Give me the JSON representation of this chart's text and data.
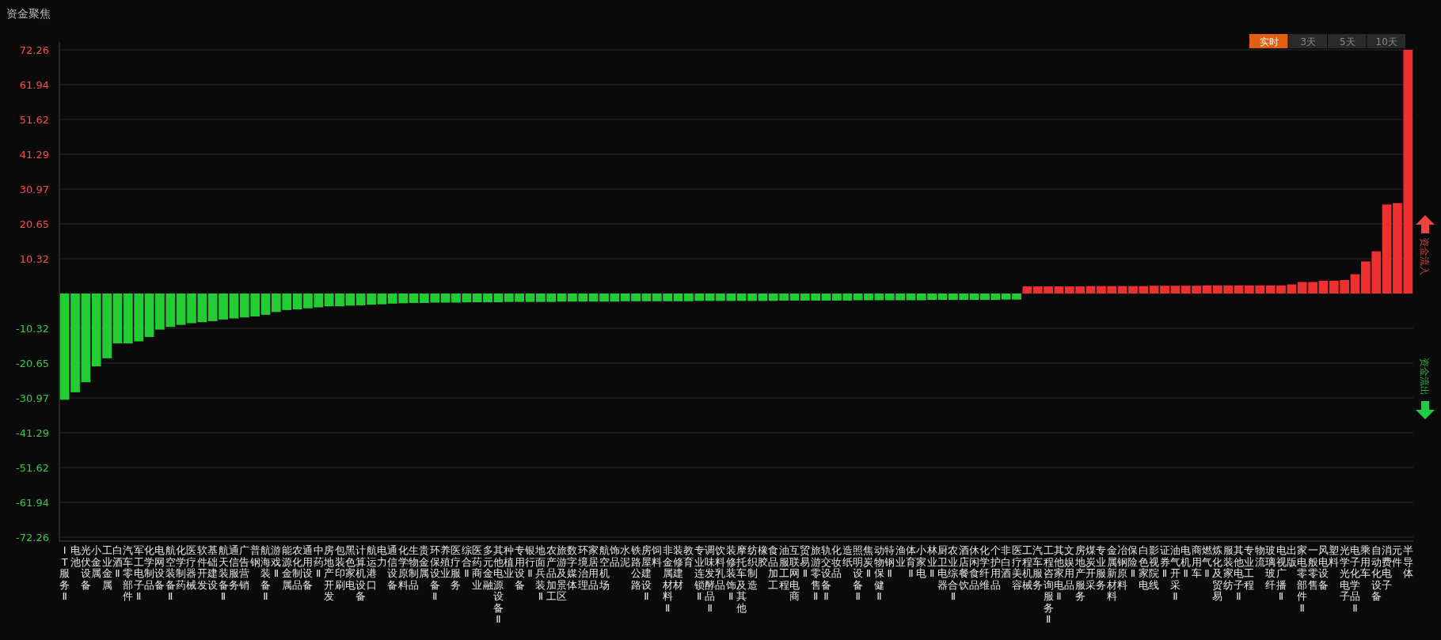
{
  "chart_data": {
    "type": "bar",
    "title": "资金聚焦",
    "categories": [
      "IT服务Ⅱ",
      "电池",
      "光伏设备",
      "小金属",
      "工业金属",
      "白酒Ⅱ",
      "汽车零部件",
      "军工电子Ⅱ",
      "化学制品",
      "电网设备",
      "航空装备Ⅱ",
      "化学制药",
      "医疗器械",
      "软件开发",
      "基础建设",
      "航天装备Ⅱ",
      "通信服务",
      "广告营销",
      "普钢",
      "航海装备Ⅱ",
      "游戏Ⅱ",
      "能源金属",
      "农化制品",
      "通用设备",
      "中药Ⅱ",
      "房地产开发",
      "包装印刷",
      "黑色家电",
      "计算机设备",
      "航运港口",
      "电力",
      "通信设备",
      "化学原料",
      "生物制品",
      "贵金属",
      "环保设备Ⅱ",
      "养殖业",
      "医疗服务",
      "综合Ⅱ",
      "医药商业",
      "多元金融",
      "其他电源设备Ⅱ",
      "种植业",
      "专用设备",
      "银行Ⅱ",
      "地面兵装Ⅱ",
      "农产品加工",
      "旅游及景区",
      "数字媒体",
      "环境治理",
      "家居用品",
      "航空机场",
      "饰品",
      "水泥",
      "铁路公路",
      "房屋建设Ⅱ",
      "饲料",
      "非金属材料Ⅱ",
      "装修建材",
      "教育",
      "专业连锁Ⅱ",
      "调味发酵品Ⅱ",
      "饮料乳品",
      "装修装饰Ⅱ",
      "摩托车及其他",
      "纺织制造",
      "橡胶",
      "食品加工",
      "油服工程",
      "互联网电商",
      "贸易Ⅱ",
      "旅游零售Ⅱ",
      "轨交设备Ⅱ",
      "化妆品",
      "造纸",
      "照明设备Ⅱ",
      "焦炭Ⅱ",
      "动物保健Ⅱ",
      "特钢Ⅱ",
      "渔业",
      "体育Ⅱ",
      "小家电",
      "林业Ⅱ",
      "厨卫电器",
      "农业综合Ⅱ",
      "酒店餐饮",
      "休闲食品",
      "化学纤维",
      "个护用品",
      "非白酒",
      "医疗美容",
      "工程机械",
      "汽车服务",
      "工程咨询服务Ⅱ",
      "其他家电Ⅱ",
      "文娱用品",
      "房地产服务",
      "煤炭开采",
      "专业服务",
      "金属新材料",
      "冶钢原料",
      "保险Ⅱ",
      "白色家电",
      "影视院线",
      "证券Ⅱ",
      "油气开采Ⅱ",
      "电机Ⅱ",
      "商用车",
      "燃气Ⅱ",
      "炼化及贸易",
      "服装家纺",
      "其他电子Ⅱ",
      "专业工程",
      "物流",
      "玻璃玻纤",
      "电视广播Ⅱ",
      "出版",
      "家电零部件Ⅱ",
      "一般零售",
      "风电设备",
      "塑料",
      "光学光电子",
      "电子化学品Ⅱ",
      "乘用车",
      "自动化设备",
      "消费电子",
      "元件",
      "半导体"
    ],
    "values": [
      -31.5,
      -29.3,
      -26.3,
      -21.6,
      -19.2,
      -14.8,
      -14.8,
      -14.2,
      -12.9,
      -10.7,
      -9.9,
      -9.3,
      -8.8,
      -8.5,
      -8.2,
      -7.7,
      -7.4,
      -7.1,
      -6.8,
      -6.3,
      -5.5,
      -4.9,
      -4.7,
      -4.4,
      -4.1,
      -3.8,
      -3.8,
      -3.6,
      -3.5,
      -3.3,
      -3.2,
      -3.0,
      -2.9,
      -2.8,
      -2.8,
      -2.7,
      -2.7,
      -2.7,
      -2.6,
      -2.6,
      -2.6,
      -2.6,
      -2.5,
      -2.5,
      -2.5,
      -2.5,
      -2.5,
      -2.4,
      -2.4,
      -2.4,
      -2.4,
      -2.4,
      -2.4,
      -2.3,
      -2.3,
      -2.3,
      -2.3,
      -2.3,
      -2.3,
      -2.3,
      -2.2,
      -2.2,
      -2.2,
      -2.2,
      -2.2,
      -2.2,
      -2.2,
      -2.2,
      -2.1,
      -2.1,
      -2.1,
      -2.1,
      -2.1,
      -2.1,
      -2.1,
      -2.0,
      -2.0,
      -2.0,
      -2.0,
      -2.0,
      -2.0,
      -2.0,
      -1.9,
      -1.9,
      -1.9,
      -1.9,
      -1.9,
      -1.9,
      -1.9,
      -1.8,
      -1.8,
      2.1,
      2.1,
      2.1,
      2.1,
      2.1,
      2.1,
      2.2,
      2.2,
      2.2,
      2.2,
      2.2,
      2.2,
      2.3,
      2.3,
      2.3,
      2.3,
      2.3,
      2.4,
      2.4,
      2.4,
      2.4,
      2.4,
      2.4,
      2.4,
      2.4,
      2.7,
      3.4,
      3.4,
      3.8,
      3.8,
      4.0,
      5.7,
      9.5,
      12.5,
      26.4,
      26.8,
      72.26
    ],
    "colors": [
      "#22cc33",
      "#22cc33",
      "#22cc33",
      "#22cc33",
      "#22cc33",
      "#22cc33",
      "#22cc33",
      "#22cc33",
      "#22cc33",
      "#22cc33",
      "#22cc33",
      "#22cc33",
      "#22cc33",
      "#22cc33",
      "#22cc33",
      "#22cc33",
      "#22cc33",
      "#22cc33",
      "#22cc33",
      "#22cc33",
      "#22cc33",
      "#22cc33",
      "#22cc33",
      "#22cc33",
      "#22cc33",
      "#22cc33",
      "#22cc33",
      "#22cc33",
      "#22cc33",
      "#22cc33",
      "#22cc33",
      "#22cc33",
      "#22cc33",
      "#22cc33",
      "#22cc33",
      "#22cc33",
      "#22cc33",
      "#22cc33",
      "#22cc33",
      "#22cc33",
      "#22cc33",
      "#22cc33",
      "#22cc33",
      "#22cc33",
      "#22cc33",
      "#22cc33",
      "#22cc33",
      "#22cc33",
      "#22cc33",
      "#22cc33",
      "#22cc33",
      "#22cc33",
      "#22cc33",
      "#22cc33",
      "#22cc33",
      "#22cc33",
      "#22cc33",
      "#22cc33",
      "#22cc33",
      "#22cc33",
      "#22cc33",
      "#22cc33",
      "#22cc33",
      "#22cc33",
      "#22cc33",
      "#22cc33",
      "#22cc33",
      "#22cc33",
      "#22cc33",
      "#22cc33",
      "#22cc33",
      "#22cc33",
      "#22cc33",
      "#22cc33",
      "#22cc33",
      "#22cc33",
      "#22cc33",
      "#22cc33",
      "#22cc33",
      "#22cc33",
      "#22cc33",
      "#22cc33",
      "#22cc33",
      "#22cc33",
      "#22cc33",
      "#22cc33",
      "#22cc33",
      "#22cc33",
      "#22cc33",
      "#22cc33",
      "#22cc33",
      "#f03030",
      "#f03030",
      "#f03030",
      "#f03030",
      "#f03030",
      "#f03030",
      "#f03030",
      "#f03030",
      "#f03030",
      "#f03030",
      "#f03030",
      "#f03030",
      "#f03030",
      "#f03030",
      "#f03030",
      "#f03030",
      "#f03030",
      "#f03030",
      "#f03030",
      "#f03030",
      "#f03030",
      "#f03030",
      "#f03030",
      "#f03030",
      "#f03030",
      "#f03030",
      "#f03030",
      "#f03030",
      "#f03030",
      "#f03030",
      "#f03030",
      "#f03030",
      "#f03030",
      "#f03030",
      "#f03030",
      "#f03030",
      "#f03030"
    ],
    "ylim": [
      -72.26,
      72.26
    ],
    "yticks": [
      72.26,
      61.94,
      51.62,
      41.29,
      30.97,
      20.65,
      10.32,
      -10.32,
      -20.65,
      -30.97,
      -41.29,
      -51.62,
      -61.94,
      -72.26
    ],
    "grid": "y",
    "annotations": [
      "实时",
      "3天",
      "5天",
      "10天",
      "资金流入",
      "资金流出"
    ]
  }
}
